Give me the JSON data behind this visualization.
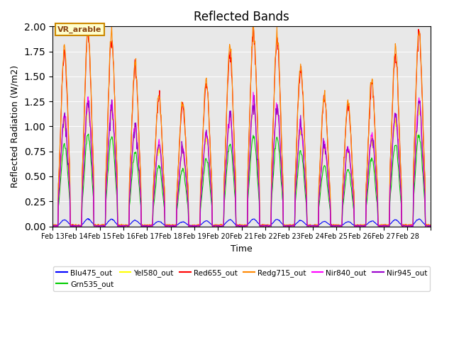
{
  "title": "Reflected Bands",
  "ylabel": "Reflected Radiation (W/m2)",
  "xlabel": "Time",
  "annotation": "VR_arable",
  "ylim": [
    0,
    2.0
  ],
  "background_color": "#e8e8e8",
  "series": {
    "Blu475_out": {
      "color": "#0000ff"
    },
    "Grn535_out": {
      "color": "#00cc00"
    },
    "Yel580_out": {
      "color": "#ffff00"
    },
    "Red655_out": {
      "color": "#ff0000"
    },
    "Redg715_out": {
      "color": "#ff8800"
    },
    "Nir840_out": {
      "color": "#ff00ff"
    },
    "Nir945_out": {
      "color": "#9900cc"
    }
  },
  "xtick_labels": [
    "Feb 13",
    "Feb 14",
    "Feb 15",
    "Feb 16",
    "Feb 17",
    "Feb 18",
    "Feb 19",
    "Feb 20",
    "Feb 21",
    "Feb 22",
    "Feb 23",
    "Feb 24",
    "Feb 25",
    "Feb 26",
    "Feb 27",
    "Feb 28"
  ],
  "n_days": 16,
  "points_per_day": 48
}
